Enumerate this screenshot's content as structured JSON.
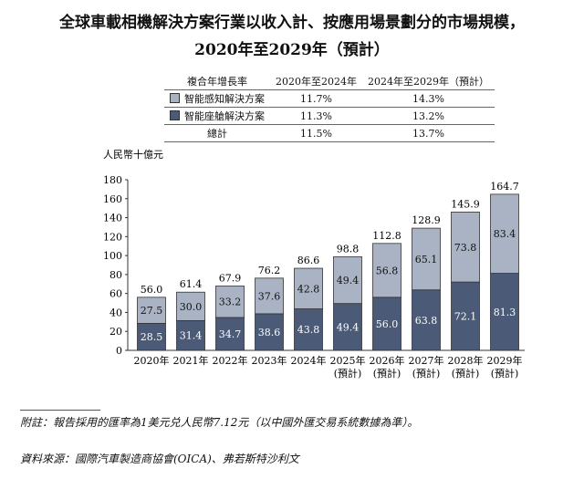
{
  "title_line1": "全球車載相機解決方案行業以收入計、按應用場景劃分的市場規模，",
  "title_line2": "2020年至2029年（預計）",
  "cagr_table": {
    "headers": [
      "複合年增長率",
      "2020年至2024年",
      "2024年至2029年（預計）"
    ],
    "rows": [
      {
        "label": "智能感知解決方案",
        "color": "#a9b3c4",
        "a": "11.7%",
        "b": "14.3%"
      },
      {
        "label": "智能座艙解決方案",
        "color": "#4b5a76",
        "a": "11.3%",
        "b": "13.2%"
      },
      {
        "label": "總計",
        "a": "11.5%",
        "b": "13.7%"
      }
    ]
  },
  "chart_data": {
    "type": "bar",
    "stacked": true,
    "ylabel": "人民幣十億元",
    "ylim": [
      0,
      180
    ],
    "yticks": [
      "0",
      "20",
      "40",
      "60",
      "80",
      "100",
      "120",
      "140",
      "160",
      "180"
    ],
    "categories": [
      "2020年",
      "2021年",
      "2022年",
      "2023年",
      "2024年",
      "2025年",
      "2026年",
      "2027年",
      "2028年",
      "2029年"
    ],
    "category_sub": [
      "",
      "",
      "",
      "",
      "",
      "(預計)",
      "(預計)",
      "(預計)",
      "(預計)",
      "(預計)"
    ],
    "series": [
      {
        "name": "智能座艙解決方案",
        "color": "#4b5a76",
        "values": [
          28.5,
          31.4,
          34.7,
          38.6,
          43.8,
          49.4,
          56.0,
          63.8,
          72.1,
          81.3
        ],
        "labels": [
          "28.5",
          "31.4",
          "34.7",
          "38.6",
          "43.8",
          "49.4",
          "56.0",
          "63.8",
          "72.1",
          "81.3"
        ]
      },
      {
        "name": "智能感知解決方案",
        "color": "#a9b3c4",
        "values": [
          27.5,
          30.0,
          33.2,
          37.6,
          42.8,
          49.4,
          56.8,
          65.1,
          73.8,
          83.4
        ],
        "labels": [
          "27.5",
          "30.0",
          "33.2",
          "37.6",
          "42.8",
          "49.4",
          "56.8",
          "65.1",
          "73.8",
          "83.4"
        ]
      }
    ],
    "totals": [
      "56.0",
      "61.4",
      "67.9",
      "76.2",
      "86.6",
      "98.8",
      "112.8",
      "128.9",
      "145.9",
      "164.7"
    ]
  },
  "note": "附註：報告採用的匯率為1美元兑人民幣7.12元（以中國外匯交易系統數據為準）。",
  "source": "資料來源：國際汽車製造商協會(OICA)、弗若斯特沙利文"
}
